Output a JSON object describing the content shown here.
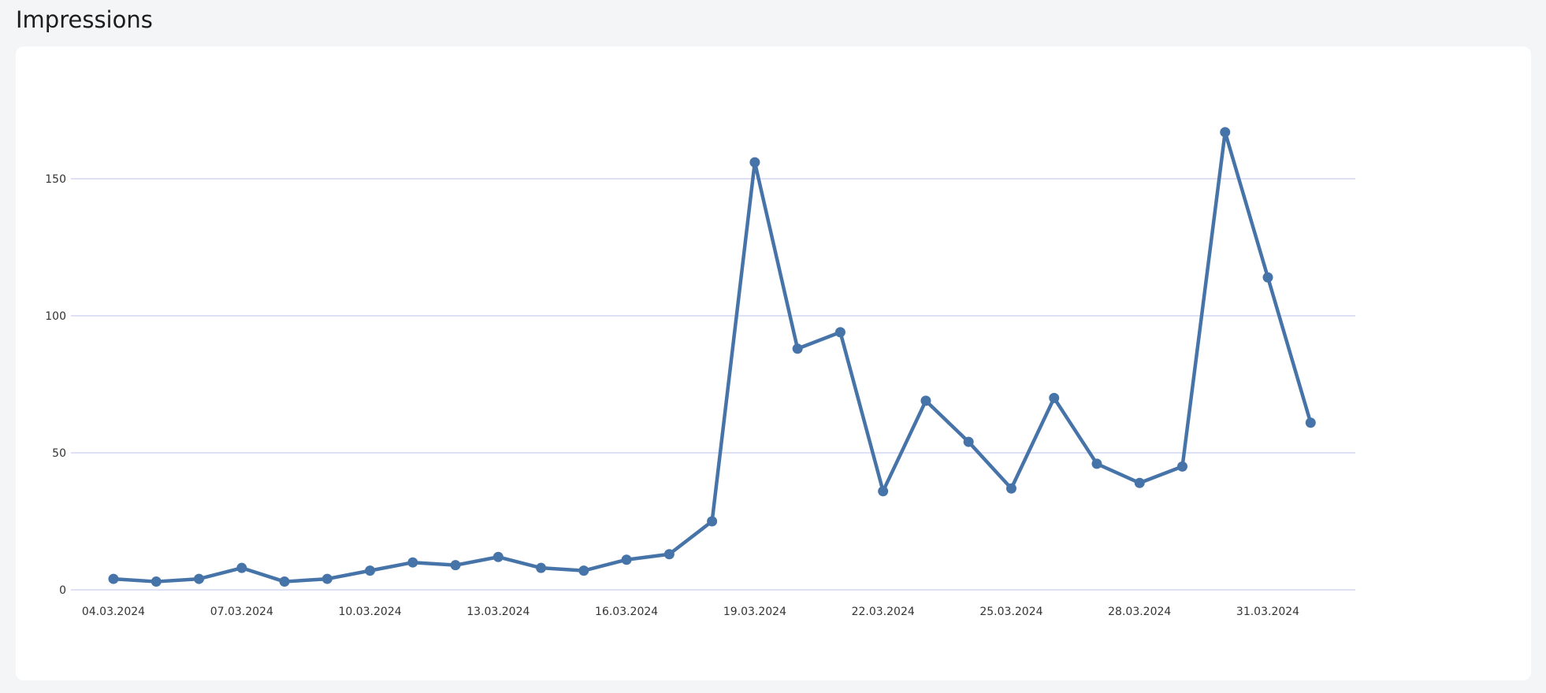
{
  "page": {
    "title": "Impressions"
  },
  "colors": {
    "line": "#4674a8",
    "grid": "#d3d6f2",
    "background": "#f4f5f7",
    "card": "#ffffff"
  },
  "chart_data": {
    "type": "line",
    "title": "",
    "xlabel": "",
    "ylabel": "",
    "x": [
      "04.03.2024",
      "05.03.2024",
      "06.03.2024",
      "07.03.2024",
      "08.03.2024",
      "09.03.2024",
      "10.03.2024",
      "11.03.2024",
      "12.03.2024",
      "13.03.2024",
      "14.03.2024",
      "15.03.2024",
      "16.03.2024",
      "17.03.2024",
      "18.03.2024",
      "19.03.2024",
      "20.03.2024",
      "21.03.2024",
      "22.03.2024",
      "23.03.2024",
      "24.03.2024",
      "25.03.2024",
      "26.03.2024",
      "27.03.2024",
      "28.03.2024",
      "29.03.2024",
      "30.03.2024",
      "31.03.2024",
      "01.04.2024"
    ],
    "series": [
      {
        "values": [
          4,
          3,
          4,
          8,
          3,
          4,
          7,
          10,
          9,
          12,
          8,
          7,
          11,
          13,
          25,
          156,
          88,
          94,
          36,
          69,
          54,
          37,
          70,
          46,
          39,
          45,
          167,
          114,
          61
        ]
      }
    ],
    "x_tick_labels": [
      "04.03.2024",
      "07.03.2024",
      "10.03.2024",
      "13.03.2024",
      "16.03.2024",
      "19.03.2024",
      "22.03.2024",
      "25.03.2024",
      "28.03.2024",
      "31.03.2024"
    ],
    "y_ticks": [
      0,
      50,
      100,
      150
    ],
    "ylim": [
      0,
      170
    ],
    "grid": true,
    "legend": "none"
  }
}
